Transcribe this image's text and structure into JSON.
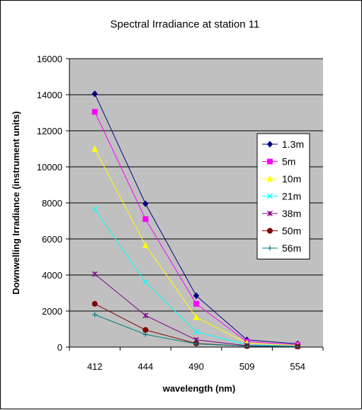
{
  "chart_data": {
    "type": "line",
    "title": "Spectral Irradiance at station 11",
    "xlabel": "wavelength (nm)",
    "ylabel": "Downwelling Irradiance (instrument units)",
    "categories": [
      "412",
      "444",
      "490",
      "509",
      "554"
    ],
    "ylim": [
      0,
      16000
    ],
    "yticks": [
      "0",
      "2000",
      "4000",
      "6000",
      "8000",
      "10000",
      "12000",
      "14000",
      "16000"
    ],
    "grid": "horizontal",
    "plot_background": "#c0c0c0",
    "legend_position": "right",
    "series": [
      {
        "name": "1.3m",
        "color": "#000080",
        "marker": "diamond",
        "values": [
          14050,
          7950,
          2850,
          400,
          180
        ]
      },
      {
        "name": "5m",
        "color": "#ff00ff",
        "marker": "square",
        "values": [
          13050,
          7100,
          2400,
          300,
          120
        ]
      },
      {
        "name": "10m",
        "color": "#ffff00",
        "marker": "triangle",
        "values": [
          11000,
          5650,
          1650,
          220,
          90
        ]
      },
      {
        "name": "21m",
        "color": "#00ffff",
        "marker": "x",
        "values": [
          7650,
          3600,
          850,
          120,
          60
        ]
      },
      {
        "name": "38m",
        "color": "#800080",
        "marker": "star",
        "values": [
          4050,
          1750,
          400,
          80,
          40
        ]
      },
      {
        "name": "50m",
        "color": "#800000",
        "marker": "circle",
        "values": [
          2400,
          950,
          200,
          50,
          30
        ]
      },
      {
        "name": "56m",
        "color": "#008080",
        "marker": "plus",
        "values": [
          1800,
          700,
          180,
          50,
          30
        ]
      }
    ]
  }
}
